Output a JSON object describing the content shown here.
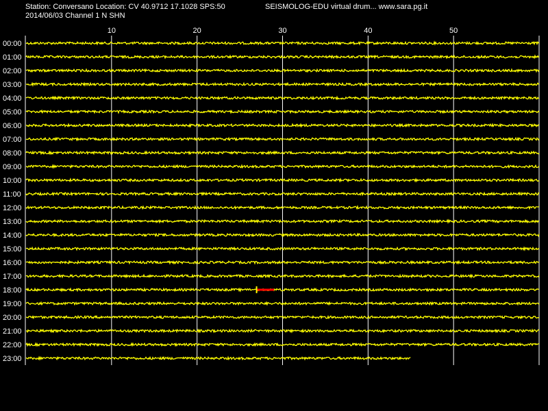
{
  "header": {
    "station_line": "Station: Conversano Location: CV 40.9712 17.1028 SPS:50",
    "date_line": "2014/06/03  Channel 1 N SHN",
    "app_line": "SEISMOLOG-EDU virtual drum... www.sara.pg.it"
  },
  "colors": {
    "background": "#000000",
    "trace": "#ffff00",
    "event": "#ff0000",
    "grid": "#ffffff",
    "text": "#ffffff"
  },
  "chart_data": {
    "type": "line",
    "title": "",
    "xlabel": "",
    "ylabel": "",
    "xlim": [
      0,
      60
    ],
    "x_ticks": [
      10,
      20,
      30,
      40,
      50
    ],
    "x_tick_labels": [
      "10",
      "20",
      "30",
      "40",
      "50"
    ],
    "rows": [
      "00:00",
      "01:00",
      "02:00",
      "03:00",
      "04:00",
      "05:00",
      "06:00",
      "07:00",
      "08:00",
      "09:00",
      "10:00",
      "11:00",
      "12:00",
      "13:00",
      "14:00",
      "15:00",
      "16:00",
      "17:00",
      "18:00",
      "19:00",
      "20:00",
      "21:00",
      "22:00",
      "23:00"
    ],
    "row_end_minute": [
      60,
      60,
      60,
      60,
      60,
      60,
      60,
      60,
      60,
      60,
      60,
      60,
      60,
      60,
      60,
      60,
      60,
      60,
      60,
      60,
      60,
      60,
      60,
      45
    ],
    "grid": true,
    "events": [
      {
        "row": "18:00",
        "start_minute": 27,
        "end_minute": 29
      }
    ]
  }
}
